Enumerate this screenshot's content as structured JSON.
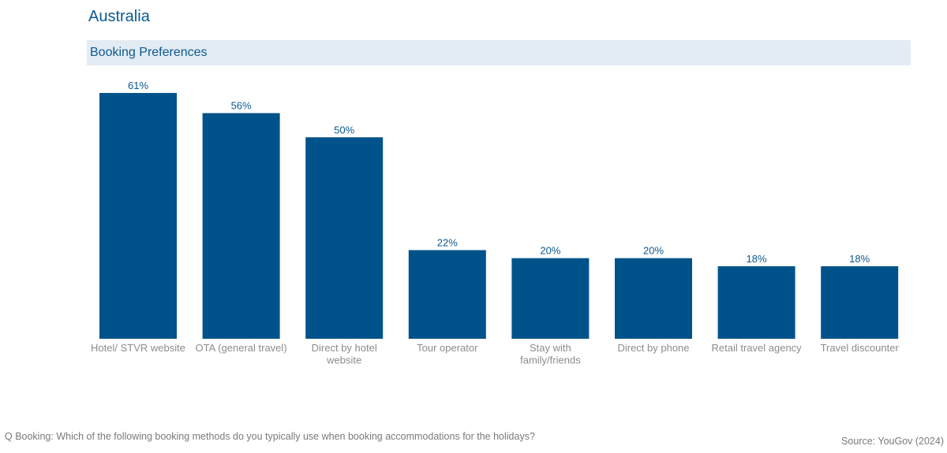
{
  "page": {
    "title": "Australia",
    "footnote": "Q Booking: Which of the following booking methods do you typically use when booking accommodations for the holidays?",
    "source": "Source: YouGov (2024)"
  },
  "colors": {
    "bar": "#00528a",
    "header_bg": "#e3ebf3",
    "title": "#0a5a8f",
    "label": "#8c8c8c"
  },
  "chart_data": {
    "type": "bar",
    "title": "Booking Preferences",
    "xlabel": "",
    "ylabel": "",
    "ylim": [
      0,
      61
    ],
    "grid": false,
    "legend": "none",
    "categories": [
      [
        "Hotel/ STVR website"
      ],
      [
        "OTA (general travel)"
      ],
      [
        "Direct by hotel",
        "website"
      ],
      [
        "Tour operator"
      ],
      [
        "Stay with",
        "family/friends"
      ],
      [
        "Direct by phone"
      ],
      [
        "Retail travel agency"
      ],
      [
        "Travel discounter"
      ]
    ],
    "values": [
      61,
      56,
      50,
      22,
      20,
      20,
      18,
      18
    ],
    "value_labels": [
      "61%",
      "56%",
      "50%",
      "22%",
      "20%",
      "20%",
      "18%",
      "18%"
    ]
  }
}
